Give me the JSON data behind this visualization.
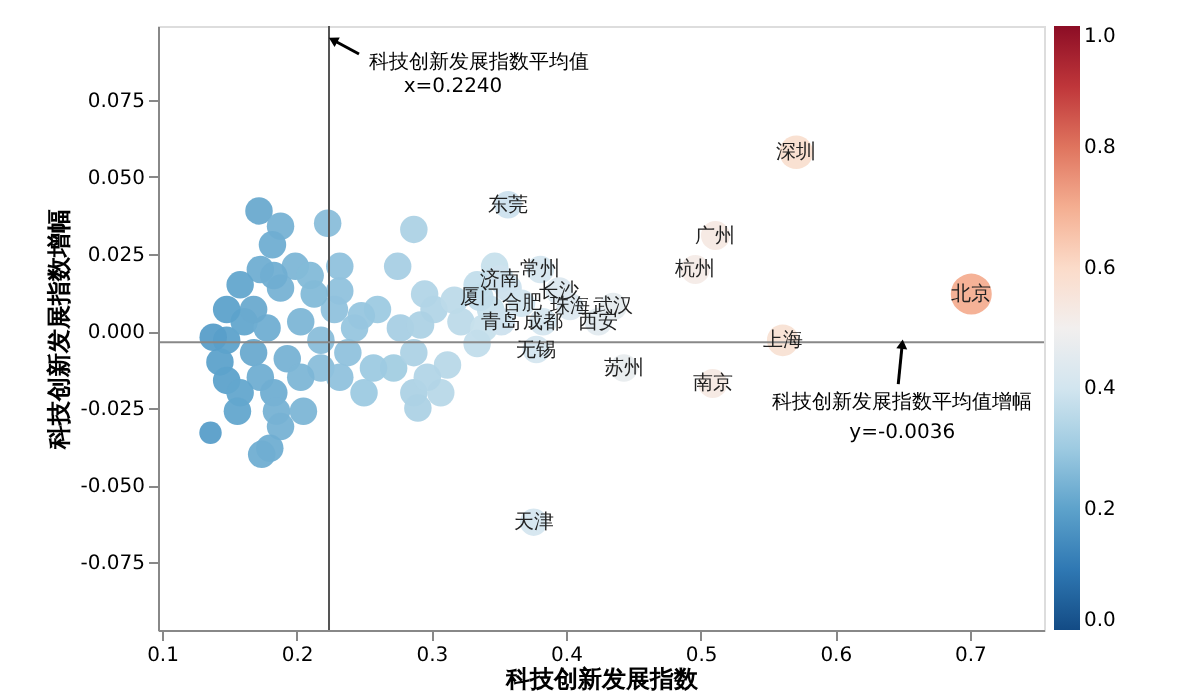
{
  "chart_data": {
    "type": "bubble",
    "xlabel": "科技创新发展指数",
    "ylabel": "科技创新发展指数增幅",
    "xlim": [
      0.097,
      0.755
    ],
    "ylim": [
      -0.097,
      0.099
    ],
    "xticks": [
      0.1,
      0.2,
      0.3,
      0.4,
      0.5,
      0.6,
      0.7
    ],
    "yticks": [
      {
        "value": -0.075,
        "label": "-0.075"
      },
      {
        "value": -0.05,
        "label": "-0.050"
      },
      {
        "value": -0.025,
        "label": "-0.025"
      },
      {
        "value": 0,
        "label": "0.000"
      },
      {
        "value": 0.025,
        "label": "0.025"
      },
      {
        "value": 0.05,
        "label": "0.050"
      },
      {
        "value": 0.075,
        "label": "0.075"
      }
    ],
    "clim": [
      0,
      1
    ],
    "cticks": [
      {
        "value": 0,
        "label": "0.0"
      },
      {
        "value": 0.2,
        "label": "0.2"
      },
      {
        "value": 0.4,
        "label": "0.4"
      },
      {
        "value": 0.6,
        "label": "0.6"
      },
      {
        "value": 0.8,
        "label": "0.8"
      },
      {
        "value": 1,
        "label": "1.0"
      }
    ],
    "marker": "circle",
    "series": [
      {
        "x": [
          0.172,
          0.188,
          0.223,
          0.182,
          0.173,
          0.199,
          0.21,
          0.232,
          0.287,
          0.275,
          0.158,
          0.188,
          0.232,
          0.295,
          0.347,
          0.334,
          0.26,
          0.302,
          0.317,
          0.322,
          0.148,
          0.161,
          0.178,
          0.203,
          0.218,
          0.243,
          0.277,
          0.292,
          0.339,
          0.143,
          0.168,
          0.193,
          0.218,
          0.238,
          0.272,
          0.287,
          0.312,
          0.334,
          0.148,
          0.173,
          0.203,
          0.232,
          0.158,
          0.183,
          0.156,
          0.185,
          0.205,
          0.25,
          0.287,
          0.29,
          0.307,
          0.188,
          0.136,
          0.18,
          0.174,
          0.297,
          0.257,
          0.248,
          0.228,
          0.213,
          0.183,
          0.168,
          0.148,
          0.138,
          0.344,
          0.357,
          0.571,
          0.701,
          0.561,
          0.511,
          0.496,
          0.509,
          0.443,
          0.435,
          0.424,
          0.357,
          0.376,
          0.381,
          0.395,
          0.336,
          0.367,
          0.403,
          0.352,
          0.383,
          0.378,
          0.351
        ],
        "values": [
          0.039,
          0.034,
          0.035,
          0.028,
          0.02,
          0.021,
          0.018,
          0.021,
          0.033,
          0.021,
          0.015,
          0.014,
          0.013,
          0.012,
          0.021,
          0.015,
          0.007,
          0.007,
          0.01,
          0.003,
          -0.003,
          0.003,
          0.001,
          0.003,
          -0.003,
          0.001,
          0.001,
          0.002,
          0.001,
          -0.01,
          -0.007,
          -0.009,
          -0.012,
          -0.007,
          -0.012,
          -0.007,
          -0.011,
          -0.004,
          -0.016,
          -0.015,
          -0.015,
          -0.015,
          -0.02,
          -0.02,
          -0.026,
          -0.026,
          -0.026,
          -0.02,
          -0.02,
          -0.025,
          -0.02,
          -0.031,
          -0.033,
          -0.038,
          -0.04,
          -0.015,
          -0.012,
          0.005,
          0.007,
          0.012,
          0.018,
          0.007,
          0.007,
          -0.002,
          0.007,
          0.014,
          0.058,
          0.012,
          -0.003,
          0.031,
          0.02,
          -0.017,
          -0.012,
          0.008,
          0.003,
          0.041,
          -0.062,
          0.02,
          0.013,
          0.011,
          0.009,
          0.008,
          0.003,
          0.003,
          -0.006,
          0.017
        ],
        "sizes": [
          0.45,
          0.45,
          0.45,
          0.45,
          0.45,
          0.45,
          0.45,
          0.45,
          0.45,
          0.45,
          0.45,
          0.45,
          0.45,
          0.45,
          0.45,
          0.45,
          0.45,
          0.45,
          0.45,
          0.45,
          0.45,
          0.45,
          0.45,
          0.45,
          0.45,
          0.45,
          0.45,
          0.45,
          0.45,
          0.45,
          0.45,
          0.45,
          0.45,
          0.45,
          0.45,
          0.45,
          0.45,
          0.45,
          0.45,
          0.45,
          0.45,
          0.45,
          0.45,
          0.45,
          0.45,
          0.45,
          0.45,
          0.45,
          0.45,
          0.45,
          0.45,
          0.45,
          0.3,
          0.45,
          0.45,
          0.45,
          0.45,
          0.45,
          0.45,
          0.45,
          0.45,
          0.45,
          0.45,
          0.45,
          0.45,
          0.45,
          0.67,
          1,
          0.6,
          0.5,
          0.5,
          0.5,
          0.45,
          0.45,
          0.45,
          0.45,
          0.45,
          0.45,
          0.45,
          0.45,
          0.45,
          0.45,
          0.45,
          0.45,
          0.45,
          0.45
        ],
        "cvalues": [
          0.22,
          0.24,
          0.27,
          0.23,
          0.23,
          0.25,
          0.26,
          0.28,
          0.33,
          0.32,
          0.21,
          0.24,
          0.28,
          0.34,
          0.38,
          0.37,
          0.3,
          0.34,
          0.36,
          0.36,
          0.2,
          0.21,
          0.23,
          0.25,
          0.27,
          0.29,
          0.32,
          0.33,
          0.38,
          0.2,
          0.22,
          0.24,
          0.27,
          0.28,
          0.31,
          0.33,
          0.35,
          0.37,
          0.2,
          0.23,
          0.25,
          0.28,
          0.21,
          0.23,
          0.21,
          0.24,
          0.25,
          0.3,
          0.33,
          0.33,
          0.35,
          0.24,
          0.19,
          0.23,
          0.23,
          0.34,
          0.3,
          0.29,
          0.28,
          0.26,
          0.23,
          0.22,
          0.2,
          0.19,
          0.38,
          0.39,
          0.58,
          0.7,
          0.57,
          0.53,
          0.52,
          0.53,
          0.47,
          0.46,
          0.45,
          0.39,
          0.41,
          0.41,
          0.43,
          0.37,
          0.4,
          0.43,
          0.39,
          0.41,
          0.41,
          0.39
        ]
      }
    ],
    "ref_lines": [
      {
        "axis": "x",
        "value": 0.224,
        "label": "科技创新发展指数平均值\nx=0.2240",
        "color": "#555555"
      },
      {
        "axis": "y",
        "value": -0.0036,
        "label": "科技创新发展指数平均值增幅\ny=-0.0036",
        "color": "#888888"
      }
    ],
    "annotations": [
      {
        "text": "深圳",
        "x": 0.571,
        "y": 0.058
      },
      {
        "text": "北京",
        "x": 0.701,
        "y": 0.012
      },
      {
        "text": "上海",
        "x": 0.561,
        "y": -0.003
      },
      {
        "text": "广州",
        "x": 0.511,
        "y": 0.031
      },
      {
        "text": "杭州",
        "x": 0.496,
        "y": 0.02
      },
      {
        "text": "南京",
        "x": 0.509,
        "y": -0.017
      },
      {
        "text": "苏州",
        "x": 0.443,
        "y": -0.012
      },
      {
        "text": "武汉",
        "x": 0.435,
        "y": 0.008
      },
      {
        "text": "西安",
        "x": 0.424,
        "y": 0.003
      },
      {
        "text": "东莞",
        "x": 0.357,
        "y": 0.041
      },
      {
        "text": "天津",
        "x": 0.376,
        "y": -0.062
      },
      {
        "text": "常州",
        "x": 0.381,
        "y": 0.02
      },
      {
        "text": "济南",
        "x": 0.351,
        "y": 0.017
      },
      {
        "text": "长沙",
        "x": 0.395,
        "y": 0.013
      },
      {
        "text": "厦门",
        "x": 0.336,
        "y": 0.011
      },
      {
        "text": "合肥",
        "x": 0.367,
        "y": 0.009
      },
      {
        "text": "珠海",
        "x": 0.403,
        "y": 0.008
      },
      {
        "text": "青岛",
        "x": 0.352,
        "y": 0.003
      },
      {
        "text": "成都",
        "x": 0.383,
        "y": 0.003
      },
      {
        "text": "无锡",
        "x": 0.378,
        "y": -0.006
      }
    ]
  }
}
